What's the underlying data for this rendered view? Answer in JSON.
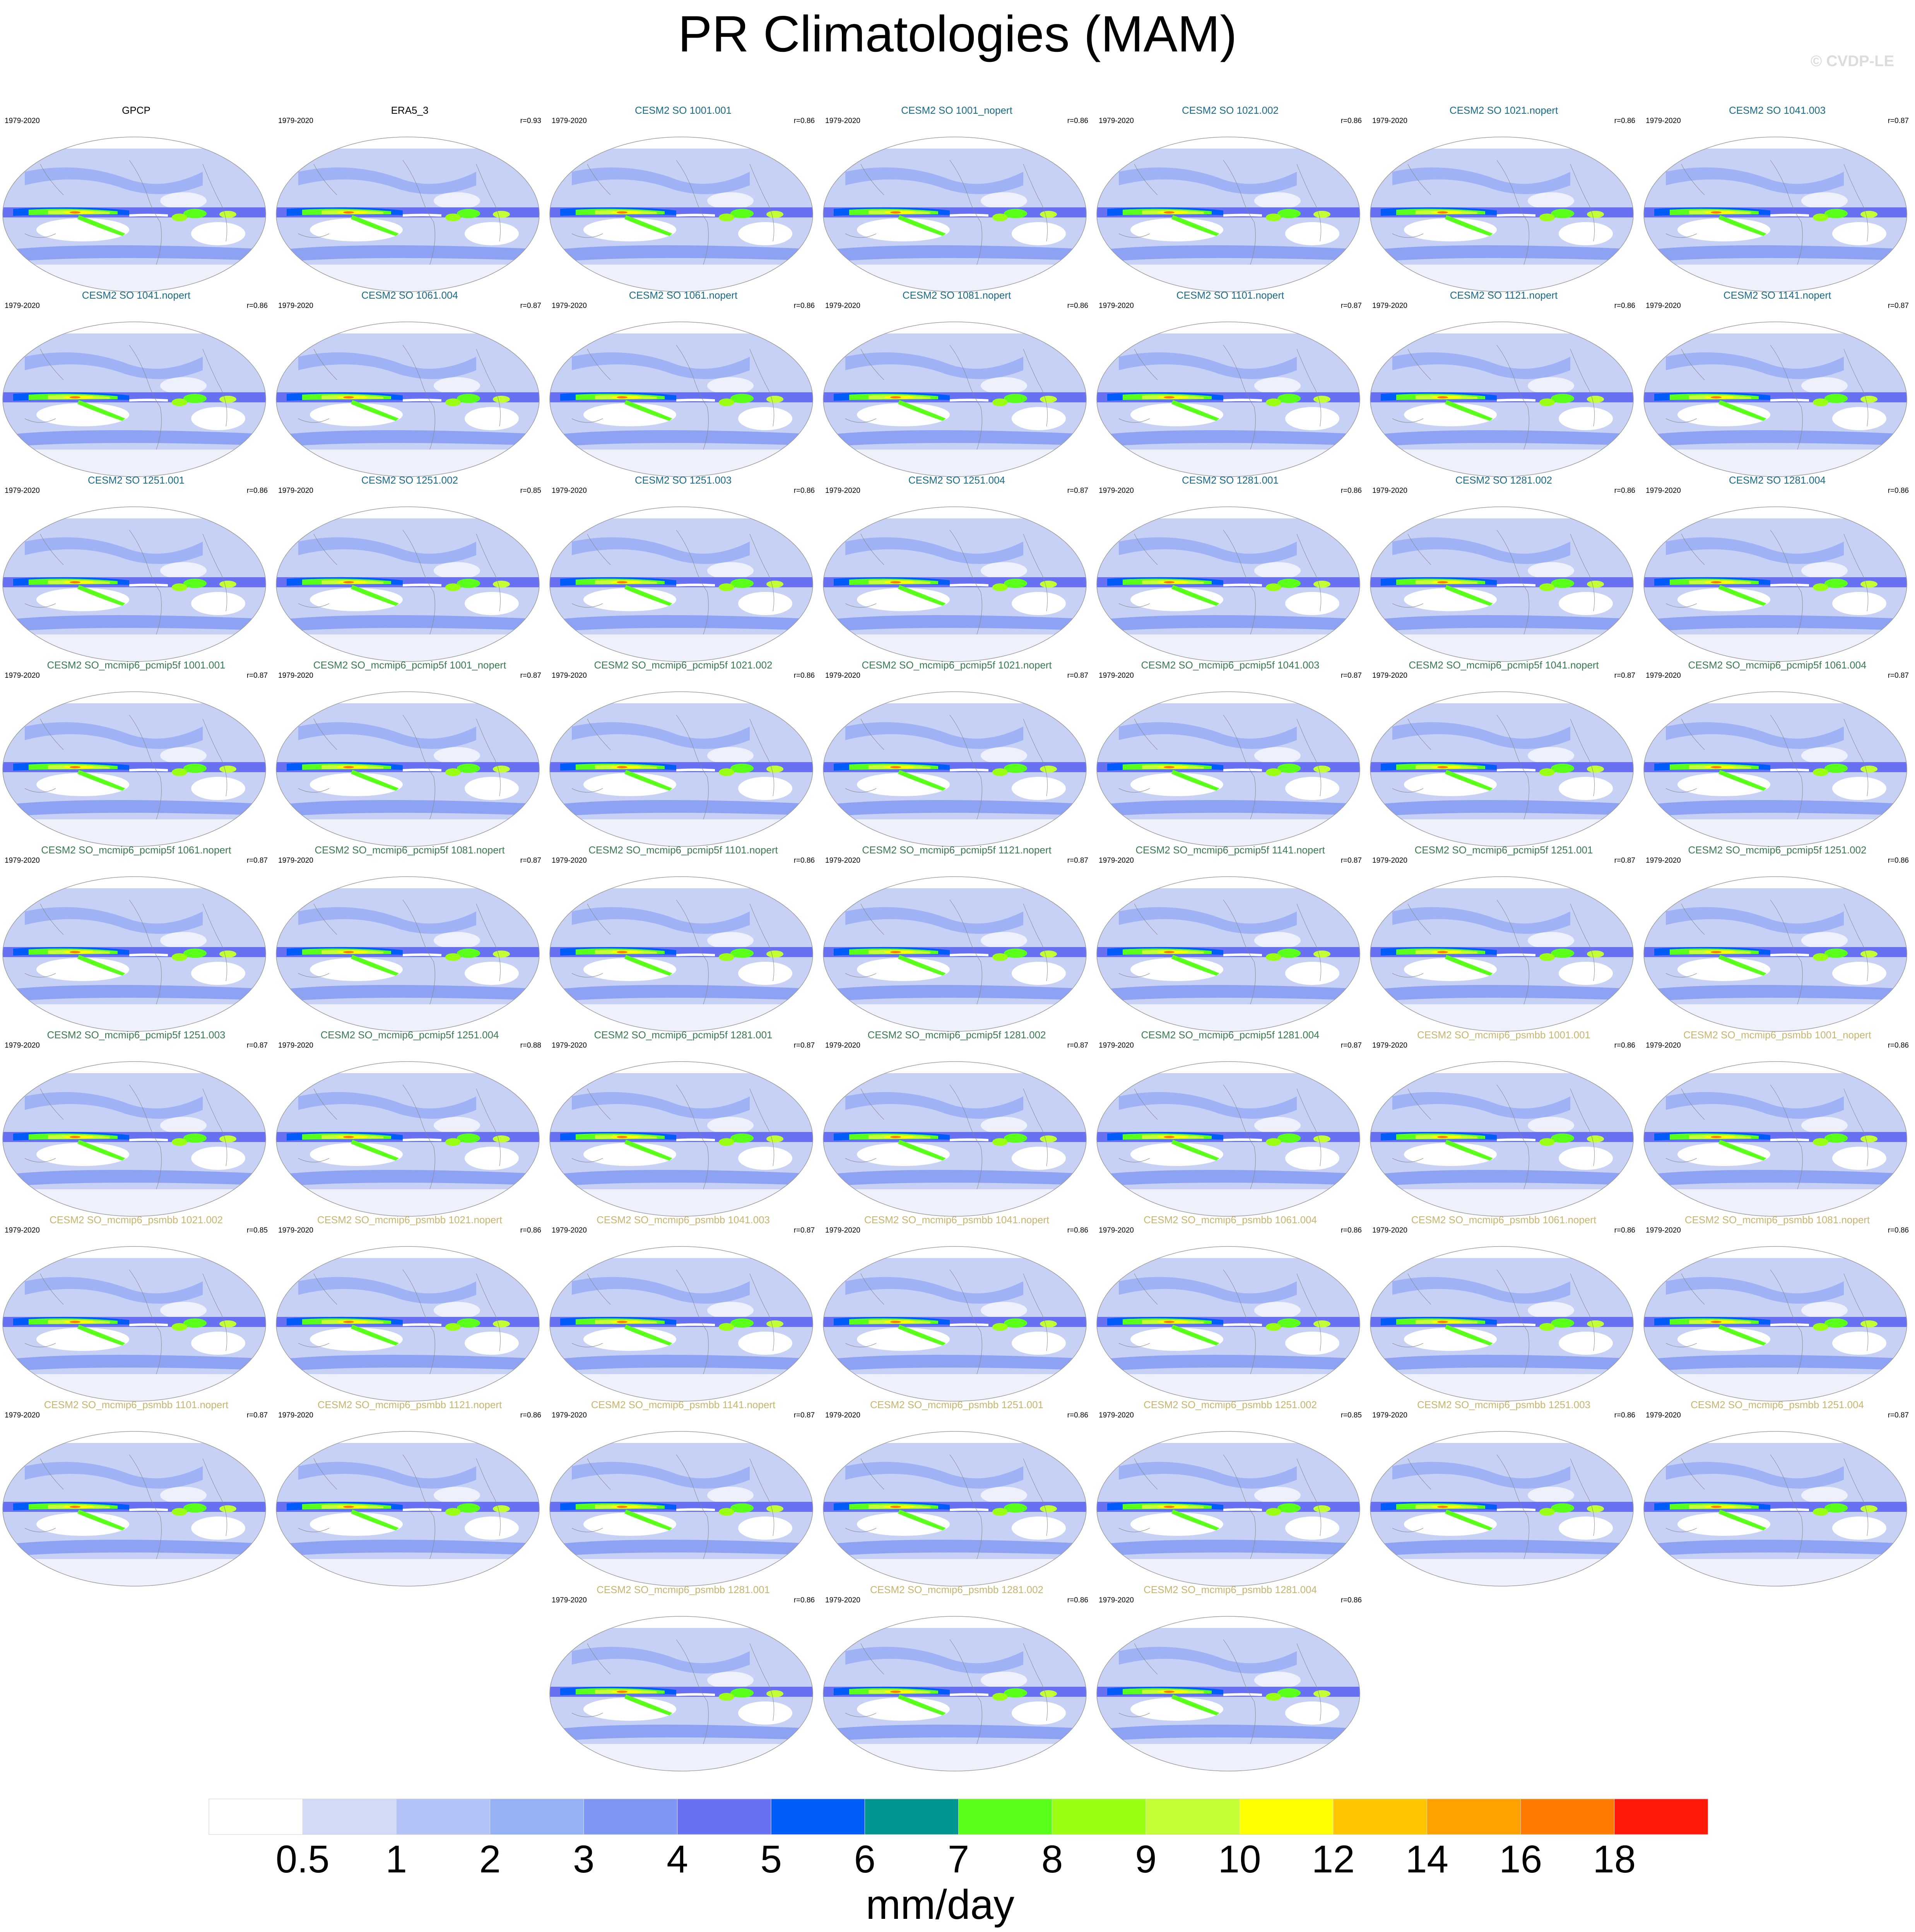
{
  "title": "PR Climatologies (MAM)",
  "watermark": "© CVDP-LE",
  "colors": {
    "obs_title": "#000000",
    "so_title": "#1a6a8a",
    "pcmip_title": "#3a7a50",
    "psmbb_title": "#c8b46e",
    "coastline": "#888888",
    "map_border": "#999999"
  },
  "panels": [
    {
      "name": "GPCP",
      "period": "1979-2020",
      "corr": "",
      "group": "obs"
    },
    {
      "name": "ERA5_3",
      "period": "1979-2020",
      "corr": "r=0.93",
      "group": "obs"
    },
    {
      "name": "CESM2 SO 1001.001",
      "period": "1979-2020",
      "corr": "r=0.86",
      "group": "so"
    },
    {
      "name": "CESM2 SO 1001_nopert",
      "period": "1979-2020",
      "corr": "r=0.86",
      "group": "so"
    },
    {
      "name": "CESM2 SO 1021.002",
      "period": "1979-2020",
      "corr": "r=0.86",
      "group": "so"
    },
    {
      "name": "CESM2 SO 1021.nopert",
      "period": "1979-2020",
      "corr": "r=0.86",
      "group": "so"
    },
    {
      "name": "CESM2 SO 1041.003",
      "period": "1979-2020",
      "corr": "r=0.87",
      "group": "so"
    },
    {
      "name": "CESM2 SO 1041.nopert",
      "period": "1979-2020",
      "corr": "r=0.86",
      "group": "so"
    },
    {
      "name": "CESM2 SO 1061.004",
      "period": "1979-2020",
      "corr": "r=0.87",
      "group": "so"
    },
    {
      "name": "CESM2 SO 1061.nopert",
      "period": "1979-2020",
      "corr": "r=0.86",
      "group": "so"
    },
    {
      "name": "CESM2 SO 1081.nopert",
      "period": "1979-2020",
      "corr": "r=0.86",
      "group": "so"
    },
    {
      "name": "CESM2 SO 1101.nopert",
      "period": "1979-2020",
      "corr": "r=0.87",
      "group": "so"
    },
    {
      "name": "CESM2 SO 1121.nopert",
      "period": "1979-2020",
      "corr": "r=0.86",
      "group": "so"
    },
    {
      "name": "CESM2 SO 1141.nopert",
      "period": "1979-2020",
      "corr": "r=0.87",
      "group": "so"
    },
    {
      "name": "CESM2 SO 1251.001",
      "period": "1979-2020",
      "corr": "r=0.86",
      "group": "so"
    },
    {
      "name": "CESM2 SO 1251.002",
      "period": "1979-2020",
      "corr": "r=0.85",
      "group": "so"
    },
    {
      "name": "CESM2 SO 1251.003",
      "period": "1979-2020",
      "corr": "r=0.86",
      "group": "so"
    },
    {
      "name": "CESM2 SO 1251.004",
      "period": "1979-2020",
      "corr": "r=0.87",
      "group": "so"
    },
    {
      "name": "CESM2 SO 1281.001",
      "period": "1979-2020",
      "corr": "r=0.86",
      "group": "so"
    },
    {
      "name": "CESM2 SO 1281.002",
      "period": "1979-2020",
      "corr": "r=0.86",
      "group": "so"
    },
    {
      "name": "CESM2 SO 1281.004",
      "period": "1979-2020",
      "corr": "r=0.86",
      "group": "so"
    },
    {
      "name": "CESM2 SO_mcmip6_pcmip5f 1001.001",
      "period": "1979-2020",
      "corr": "r=0.87",
      "group": "pcmip"
    },
    {
      "name": "CESM2 SO_mcmip6_pcmip5f 1001_nopert",
      "period": "1979-2020",
      "corr": "r=0.87",
      "group": "pcmip"
    },
    {
      "name": "CESM2 SO_mcmip6_pcmip5f 1021.002",
      "period": "1979-2020",
      "corr": "r=0.86",
      "group": "pcmip"
    },
    {
      "name": "CESM2 SO_mcmip6_pcmip5f 1021.nopert",
      "period": "1979-2020",
      "corr": "r=0.87",
      "group": "pcmip"
    },
    {
      "name": "CESM2 SO_mcmip6_pcmip5f 1041.003",
      "period": "1979-2020",
      "corr": "r=0.87",
      "group": "pcmip"
    },
    {
      "name": "CESM2 SO_mcmip6_pcmip5f 1041.nopert",
      "period": "1979-2020",
      "corr": "r=0.87",
      "group": "pcmip"
    },
    {
      "name": "CESM2 SO_mcmip6_pcmip5f 1061.004",
      "period": "1979-2020",
      "corr": "r=0.87",
      "group": "pcmip"
    },
    {
      "name": "CESM2 SO_mcmip6_pcmip5f 1061.nopert",
      "period": "1979-2020",
      "corr": "r=0.87",
      "group": "pcmip"
    },
    {
      "name": "CESM2 SO_mcmip6_pcmip5f 1081.nopert",
      "period": "1979-2020",
      "corr": "r=0.87",
      "group": "pcmip"
    },
    {
      "name": "CESM2 SO_mcmip6_pcmip5f 1101.nopert",
      "period": "1979-2020",
      "corr": "r=0.86",
      "group": "pcmip"
    },
    {
      "name": "CESM2 SO_mcmip6_pcmip5f 1121.nopert",
      "period": "1979-2020",
      "corr": "r=0.87",
      "group": "pcmip"
    },
    {
      "name": "CESM2 SO_mcmip6_pcmip5f 1141.nopert",
      "period": "1979-2020",
      "corr": "r=0.87",
      "group": "pcmip"
    },
    {
      "name": "CESM2 SO_mcmip6_pcmip5f 1251.001",
      "period": "1979-2020",
      "corr": "r=0.87",
      "group": "pcmip"
    },
    {
      "name": "CESM2 SO_mcmip6_pcmip5f 1251.002",
      "period": "1979-2020",
      "corr": "r=0.86",
      "group": "pcmip"
    },
    {
      "name": "CESM2 SO_mcmip6_pcmip5f 1251.003",
      "period": "1979-2020",
      "corr": "r=0.87",
      "group": "pcmip"
    },
    {
      "name": "CESM2 SO_mcmip6_pcmip5f 1251.004",
      "period": "1979-2020",
      "corr": "r=0.88",
      "group": "pcmip"
    },
    {
      "name": "CESM2 SO_mcmip6_pcmip5f 1281.001",
      "period": "1979-2020",
      "corr": "r=0.87",
      "group": "pcmip"
    },
    {
      "name": "CESM2 SO_mcmip6_pcmip5f 1281.002",
      "period": "1979-2020",
      "corr": "r=0.87",
      "group": "pcmip"
    },
    {
      "name": "CESM2 SO_mcmip6_pcmip5f 1281.004",
      "period": "1979-2020",
      "corr": "r=0.87",
      "group": "pcmip"
    },
    {
      "name": "CESM2 SO_mcmip6_psmbb 1001.001",
      "period": "1979-2020",
      "corr": "r=0.86",
      "group": "psmbb"
    },
    {
      "name": "CESM2 SO_mcmip6_psmbb 1001_nopert",
      "period": "1979-2020",
      "corr": "r=0.86",
      "group": "psmbb"
    },
    {
      "name": "CESM2 SO_mcmip6_psmbb 1021.002",
      "period": "1979-2020",
      "corr": "r=0.85",
      "group": "psmbb"
    },
    {
      "name": "CESM2 SO_mcmip6_psmbb 1021.nopert",
      "period": "1979-2020",
      "corr": "r=0.86",
      "group": "psmbb"
    },
    {
      "name": "CESM2 SO_mcmip6_psmbb 1041.003",
      "period": "1979-2020",
      "corr": "r=0.87",
      "group": "psmbb"
    },
    {
      "name": "CESM2 SO_mcmip6_psmbb 1041.nopert",
      "period": "1979-2020",
      "corr": "r=0.86",
      "group": "psmbb"
    },
    {
      "name": "CESM2 SO_mcmip6_psmbb 1061.004",
      "period": "1979-2020",
      "corr": "r=0.86",
      "group": "psmbb"
    },
    {
      "name": "CESM2 SO_mcmip6_psmbb 1061.nopert",
      "period": "1979-2020",
      "corr": "r=0.86",
      "group": "psmbb"
    },
    {
      "name": "CESM2 SO_mcmip6_psmbb 1081.nopert",
      "period": "1979-2020",
      "corr": "r=0.86",
      "group": "psmbb"
    },
    {
      "name": "CESM2 SO_mcmip6_psmbb 1101.nopert",
      "period": "1979-2020",
      "corr": "r=0.87",
      "group": "psmbb"
    },
    {
      "name": "CESM2 SO_mcmip6_psmbb 1121.nopert",
      "period": "1979-2020",
      "corr": "r=0.86",
      "group": "psmbb"
    },
    {
      "name": "CESM2 SO_mcmip6_psmbb 1141.nopert",
      "period": "1979-2020",
      "corr": "r=0.87",
      "group": "psmbb"
    },
    {
      "name": "CESM2 SO_mcmip6_psmbb 1251.001",
      "period": "1979-2020",
      "corr": "r=0.86",
      "group": "psmbb"
    },
    {
      "name": "CESM2 SO_mcmip6_psmbb 1251.002",
      "period": "1979-2020",
      "corr": "r=0.85",
      "group": "psmbb"
    },
    {
      "name": "CESM2 SO_mcmip6_psmbb 1251.003",
      "period": "1979-2020",
      "corr": "r=0.86",
      "group": "psmbb"
    },
    {
      "name": "CESM2 SO_mcmip6_psmbb 1251.004",
      "period": "1979-2020",
      "corr": "r=0.87",
      "group": "psmbb"
    },
    {
      "name": "CESM2 SO_mcmip6_psmbb 1281.001",
      "period": "1979-2020",
      "corr": "r=0.86",
      "group": "psmbb"
    },
    {
      "name": "CESM2 SO_mcmip6_psmbb 1281.002",
      "period": "1979-2020",
      "corr": "r=0.86",
      "group": "psmbb"
    },
    {
      "name": "CESM2 SO_mcmip6_psmbb 1281.004",
      "period": "1979-2020",
      "corr": "r=0.86",
      "group": "psmbb"
    }
  ],
  "colorbar": {
    "unit_label": "mm/day",
    "tick_labels": [
      "0.5",
      "1",
      "2",
      "3",
      "4",
      "5",
      "6",
      "7",
      "8",
      "9",
      "10",
      "12",
      "14",
      "16",
      "18"
    ],
    "colors": [
      "#ffffff",
      "#d3dcf7",
      "#b3c3f7",
      "#95b2f6",
      "#7e96f4",
      "#6871f2",
      "#005cf8",
      "#009691",
      "#5aff1a",
      "#9aff12",
      "#c4ff36",
      "#ffff00",
      "#ffc600",
      "#ffa200",
      "#ff7a00",
      "#ff1a0a"
    ]
  }
}
